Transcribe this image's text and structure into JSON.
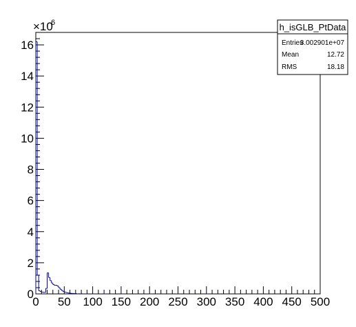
{
  "chart_data": {
    "type": "histogram",
    "title": "",
    "xlabel": "",
    "ylabel": "",
    "xlim": [
      0,
      500
    ],
    "ylim": [
      0,
      16.8
    ],
    "y_multiplier_label": "×10",
    "y_multiplier_exp": "6",
    "grid": false,
    "line_color": "#000099",
    "x_major_ticks": [
      0,
      50,
      100,
      150,
      200,
      250,
      300,
      350,
      400,
      450,
      500
    ],
    "x_tick_labels": [
      "0",
      "50",
      "100",
      "150",
      "200",
      "250",
      "300",
      "350",
      "400",
      "450",
      "500"
    ],
    "y_major_ticks": [
      0,
      2,
      4,
      6,
      8,
      10,
      12,
      14,
      16
    ],
    "y_tick_labels": [
      "0",
      "2",
      "4",
      "6",
      "8",
      "10",
      "12",
      "14",
      "16"
    ],
    "bin_width": 2.5,
    "bins": [
      {
        "x": 0,
        "value": 16.2
      },
      {
        "x": 2.5,
        "value": 1.2
      },
      {
        "x": 5,
        "value": 0.2
      },
      {
        "x": 7.5,
        "value": 0.15
      },
      {
        "x": 10,
        "value": 0.12
      },
      {
        "x": 12.5,
        "value": 0.1
      },
      {
        "x": 15,
        "value": 0.1
      },
      {
        "x": 17.5,
        "value": 0.35
      },
      {
        "x": 20,
        "value": 1.35
      },
      {
        "x": 22.5,
        "value": 1.05
      },
      {
        "x": 25,
        "value": 0.85
      },
      {
        "x": 27.5,
        "value": 0.7
      },
      {
        "x": 30,
        "value": 0.6
      },
      {
        "x": 32.5,
        "value": 0.55
      },
      {
        "x": 35,
        "value": 0.55
      },
      {
        "x": 37.5,
        "value": 0.5
      },
      {
        "x": 40,
        "value": 0.4
      },
      {
        "x": 42.5,
        "value": 0.3
      },
      {
        "x": 45,
        "value": 0.22
      },
      {
        "x": 47.5,
        "value": 0.16
      },
      {
        "x": 50,
        "value": 0.12
      },
      {
        "x": 52.5,
        "value": 0.09
      },
      {
        "x": 55,
        "value": 0.07
      },
      {
        "x": 57.5,
        "value": 0.05
      },
      {
        "x": 60,
        "value": 0.04
      },
      {
        "x": 62.5,
        "value": 0.03
      },
      {
        "x": 65,
        "value": 0.025
      },
      {
        "x": 67.5,
        "value": 0.02
      },
      {
        "x": 70,
        "value": 0.015
      },
      {
        "x": 75,
        "value": 0.01
      },
      {
        "x": 80,
        "value": 0.006
      },
      {
        "x": 90,
        "value": 0.003
      },
      {
        "x": 100,
        "value": 0.002
      },
      {
        "x": 120,
        "value": 0.001
      },
      {
        "x": 150,
        "value": 0.0005
      },
      {
        "x": 200,
        "value": 0.0002
      },
      {
        "x": 300,
        "value": 0.0001
      }
    ],
    "stats_box": {
      "name": "h_isGLB_PtData",
      "entries_label": "Entries",
      "entries_value": "3.002901e+07",
      "mean_label": "Mean",
      "mean_value": "12.72",
      "rms_label": "RMS",
      "rms_value": "18.18"
    }
  }
}
